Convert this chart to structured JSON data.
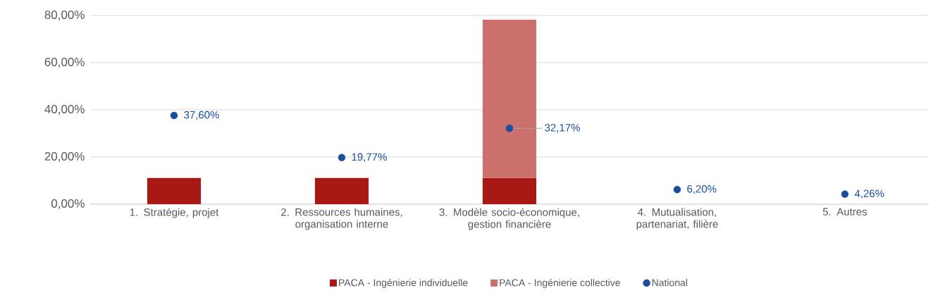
{
  "chart_data": {
    "type": "bar",
    "stacked": true,
    "categories": [
      "1. Stratégie, projet",
      "2. Ressources humaines, organisation interne",
      "3. Modèle socio-économique, gestion financière",
      "4. Mutualisation, partenariat, filière",
      "5. Autres"
    ],
    "series": [
      {
        "name": "PACA - Ingénierie individuelle",
        "color": "#a81916",
        "values": [
          11.1,
          11.1,
          11.1,
          null,
          null
        ]
      },
      {
        "name": "PACA - Ingénierie collective",
        "color": "#cc706e",
        "values": [
          null,
          null,
          67.1,
          null,
          null
        ]
      },
      {
        "name": "National",
        "type": "scatter",
        "color": "#1a4e9c",
        "values": [
          37.6,
          19.77,
          32.17,
          6.2,
          4.26
        ],
        "value_labels": [
          "37,60%",
          "19,77%",
          "32,17%",
          "6,20%",
          "4,26%"
        ]
      }
    ],
    "ylim": [
      0,
      80
    ],
    "yticks": [
      {
        "value": 0,
        "label": "0,00%"
      },
      {
        "value": 20,
        "label": "20,00%"
      },
      {
        "value": 40,
        "label": "40,00%"
      },
      {
        "value": 60,
        "label": "60,00%"
      },
      {
        "value": 80,
        "label": "80,00%"
      }
    ],
    "grid": "y",
    "legend": "bottom",
    "marker": "circle"
  }
}
